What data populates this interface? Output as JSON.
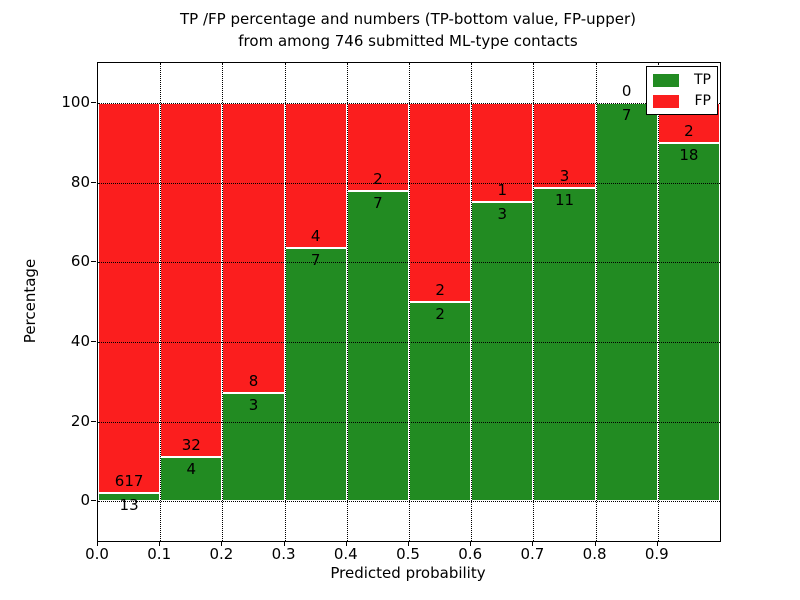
{
  "chart_data": {
    "type": "bar",
    "stacked": true,
    "units": "percent",
    "title": "TP /FP percentage and numbers (TP-bottom value, FP-upper) from among 746 submitted ML-type contacts",
    "title_lines": [
      "TP /FP percentage and numbers (TP-bottom value, FP-upper)",
      "from among 746 submitted ML-type contacts"
    ],
    "xlabel": "Predicted probability",
    "ylabel": "Percentage",
    "xlim": [
      0.0,
      1.0
    ],
    "ylim": [
      -10,
      110
    ],
    "grid": "dotted",
    "total_contacts": 746,
    "series_colors": {
      "tp": "#228b22",
      "fp": "#fb1e1e"
    },
    "legend": {
      "position": "upper-right",
      "items": [
        {
          "name": "TP",
          "color": "#228b22"
        },
        {
          "name": "FP",
          "color": "#fb1e1e"
        }
      ]
    },
    "categories": [
      "0.0-0.1",
      "0.1-0.2",
      "0.2-0.3",
      "0.3-0.4",
      "0.4-0.5",
      "0.5-0.6",
      "0.6-0.7",
      "0.7-0.8",
      "0.8-0.9",
      "0.9-1.0"
    ],
    "series": [
      {
        "name": "TP",
        "values": [
          13,
          4,
          3,
          7,
          7,
          2,
          3,
          11,
          7,
          18
        ]
      },
      {
        "name": "FP",
        "values": [
          617,
          32,
          8,
          4,
          2,
          2,
          1,
          3,
          0,
          2
        ]
      }
    ],
    "bins": [
      {
        "x_start": 0.0,
        "x_end": 0.1,
        "tp": 13,
        "fp": 617,
        "tp_percent": 2.06
      },
      {
        "x_start": 0.1,
        "x_end": 0.2,
        "tp": 4,
        "fp": 32,
        "tp_percent": 11.11
      },
      {
        "x_start": 0.2,
        "x_end": 0.3,
        "tp": 3,
        "fp": 8,
        "tp_percent": 27.27
      },
      {
        "x_start": 0.3,
        "x_end": 0.4,
        "tp": 7,
        "fp": 4,
        "tp_percent": 63.64
      },
      {
        "x_start": 0.4,
        "x_end": 0.5,
        "tp": 7,
        "fp": 2,
        "tp_percent": 77.78
      },
      {
        "x_start": 0.5,
        "x_end": 0.6,
        "tp": 2,
        "fp": 2,
        "tp_percent": 50.0
      },
      {
        "x_start": 0.6,
        "x_end": 0.7,
        "tp": 3,
        "fp": 1,
        "tp_percent": 75.0
      },
      {
        "x_start": 0.7,
        "x_end": 0.8,
        "tp": 11,
        "fp": 3,
        "tp_percent": 78.57
      },
      {
        "x_start": 0.8,
        "x_end": 0.9,
        "tp": 7,
        "fp": 0,
        "tp_percent": 100.0
      },
      {
        "x_start": 0.9,
        "x_end": 1.0,
        "tp": 18,
        "fp": 2,
        "tp_percent": 90.0
      }
    ],
    "xticks": {
      "values": [
        0.0,
        0.1,
        0.2,
        0.3,
        0.4,
        0.5,
        0.6,
        0.7,
        0.8,
        0.9
      ],
      "labels": [
        "0.0",
        "0.1",
        "0.2",
        "0.3",
        "0.4",
        "0.5",
        "0.6",
        "0.7",
        "0.8",
        "0.9"
      ]
    },
    "yticks": {
      "values": [
        0,
        20,
        40,
        60,
        80,
        100
      ],
      "labels": [
        "0",
        "20",
        "40",
        "60",
        "80",
        "100"
      ]
    }
  }
}
